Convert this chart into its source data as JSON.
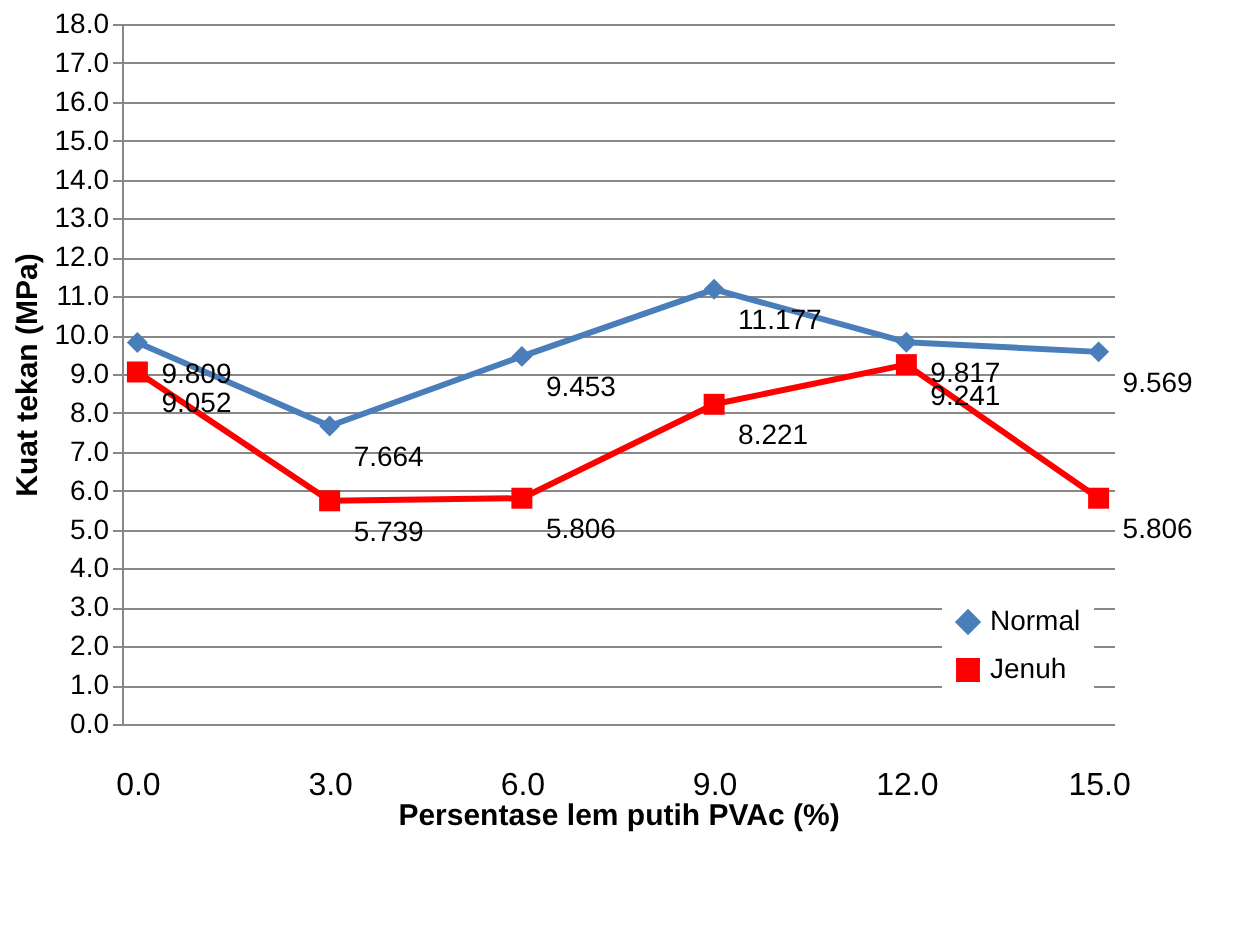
{
  "chart_data": {
    "type": "line",
    "xlabel": "Persentase lem putih  PVAc (%)",
    "ylabel": "Kuat tekan (MPa)",
    "categories": [
      "0.0",
      "3.0",
      "6.0",
      "9.0",
      "12.0",
      "15.0"
    ],
    "series": [
      {
        "name": "Normal",
        "color": "#4a7ebb",
        "marker": "diamond",
        "values": [
          9.809,
          7.664,
          9.453,
          11.177,
          9.817,
          9.569
        ]
      },
      {
        "name": "Jenuh",
        "color": "#ff0000",
        "marker": "square",
        "values": [
          9.052,
          5.739,
          5.806,
          8.221,
          9.241,
          5.806
        ]
      }
    ],
    "ylim": [
      0,
      18
    ],
    "yticks": [
      {
        "value": 0,
        "label": "0.0"
      },
      {
        "value": 1,
        "label": "1.0"
      },
      {
        "value": 2,
        "label": "2.0"
      },
      {
        "value": 3,
        "label": "3.0"
      },
      {
        "value": 4,
        "label": "4.0"
      },
      {
        "value": 5,
        "label": "5.0"
      },
      {
        "value": 6,
        "label": "6.0"
      },
      {
        "value": 7,
        "label": "7.0"
      },
      {
        "value": 8,
        "label": "8.0"
      },
      {
        "value": 9,
        "label": "9.0"
      },
      {
        "value": 10,
        "label": "10.0"
      },
      {
        "value": 11,
        "label": "11.0"
      },
      {
        "value": 12,
        "label": "12.0"
      },
      {
        "value": 13,
        "label": "13.0"
      },
      {
        "value": 14,
        "label": "14.0"
      },
      {
        "value": 15,
        "label": "15.0"
      },
      {
        "value": 16,
        "label": "16.0"
      },
      {
        "value": 17,
        "label": "17.0"
      },
      {
        "value": 18,
        "label": "18.0"
      }
    ],
    "grid": "y",
    "legend": "bottom right",
    "data_labels": true,
    "line_style": "solid"
  }
}
